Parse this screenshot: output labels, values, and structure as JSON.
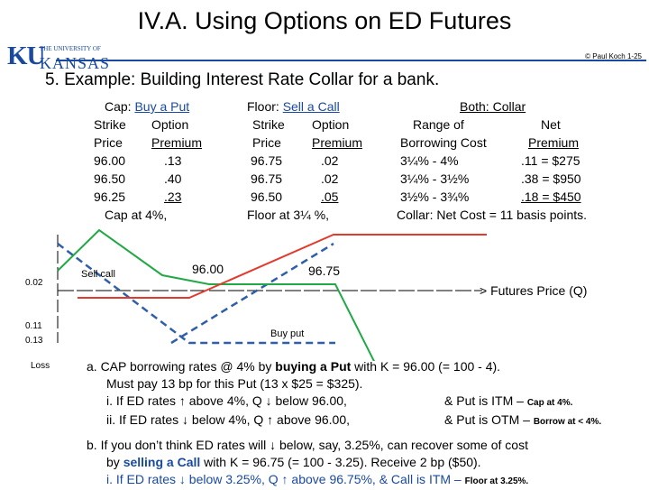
{
  "title": "IV.A.  Using Options on ED Futures",
  "logo": {
    "small_text": "THE UNIVERSITY OF",
    "mark": "KU",
    "name": "KANSAS"
  },
  "copyright": "© Paul Koch 1-25",
  "subtitle": "5.   Example:   Building Interest Rate Collar for a bank.",
  "cap": {
    "header_label": "Cap:",
    "header_action": "Buy a Put",
    "col1_head1": "Strike",
    "col1_head2": "Price",
    "col2_head1": "Option",
    "col2_head2": "Premium",
    "rows": [
      [
        "96.00",
        ".13"
      ],
      [
        "96.50",
        ".40"
      ],
      [
        "96.25",
        ".23"
      ]
    ],
    "footer": "Cap at 4%,"
  },
  "floor": {
    "header_label": "Floor:",
    "header_action": "Sell a Call",
    "col1_head1": "Strike",
    "col1_head2": "Price",
    "col2_head1": "Option",
    "col2_head2": "Premium",
    "rows": [
      [
        "96.75",
        ".02"
      ],
      [
        "96.75",
        ".02"
      ],
      [
        "96.50",
        ".05"
      ]
    ],
    "footer": "Floor at 3¼ %,"
  },
  "collar": {
    "header": "Both:  Collar",
    "col1_head1": "Range of",
    "col1_head2": "Borrowing Cost",
    "col2_head1": "Net",
    "col2_head2": "Premium",
    "rows": [
      [
        "3¼%  -  4%",
        ".11 = $275"
      ],
      [
        "3¼%  -  3½%",
        ".38 = $950"
      ],
      [
        "3½%  -  3¾%",
        ".18 = $450"
      ]
    ],
    "footer": "Collar:  Net Cost = 11 basis points."
  },
  "diagram": {
    "y_labels": {
      "v002": "0.02",
      "v011": "0.11",
      "v013": "0.13",
      "loss": "Loss"
    },
    "sell_call_label": "Sell call",
    "strike_left": "96.00",
    "strike_right": "96.75",
    "buy_put_label": "Buy put",
    "x_axis_label": "> Futures Price (Q)",
    "colors": {
      "put": "#2e5fa8",
      "call": "#22a846",
      "collar": "#e23b2e"
    }
  },
  "notes": {
    "a_line1": "a.  CAP borrowing rates  @ 4%  by",
    "a_line1_bold": "buying a  Put",
    "a_line1_end": "with  K = 96.00  (= 100 - 4).",
    "a_line2": "Must pay  13 bp  for this Put  (13 x $25 = $325).",
    "a_i": "i.  If  ED rates ↑ above 4%,  Q ↓  below 96.00,",
    "a_i_right": "& Put is ITM  –",
    "a_i_bold": "Cap at  4%.",
    "a_ii": "ii.  If  ED rates ↓ below 4%,  Q ↑  above 96.00,",
    "a_ii_right": "& Put is OTM –",
    "a_ii_bold": "Borrow at  < 4%.",
    "b_line1": "b.  If  you don’t think  ED rates will ↓  below,  say,  3.25%,  can  recover some of cost",
    "b_line2_start": "by",
    "b_line2_bold": "selling a Call",
    "b_line2_end": "with  K = 96.75  (= 100 - 3.25).   Receive  2 bp  ($50).",
    "b_i": "i.  If  ED rates ↓ below 3.25%, Q ↑ above 96.75%,  & Call is ITM  –",
    "b_i_bold": "Floor at  3.25%."
  }
}
